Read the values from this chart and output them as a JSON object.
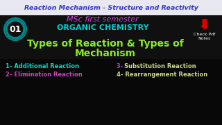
{
  "top_bar_color": "#e8e8f0",
  "top_bar_text": "Reaction Mechanism - Structure and Reactivity",
  "top_bar_text_color": "#3333cc",
  "background_color": "#080808",
  "mid_section_color": "#101010",
  "subtitle1": "MSc first semester",
  "subtitle1_color": "#cc44dd",
  "subtitle2": "ORGANIC CHEMISTRY",
  "subtitle2_color": "#00cccc",
  "main_title_line1": "Types of Reaction & Types of",
  "main_title_line2": "Mechanism",
  "main_title_color": "#88ee22",
  "badge_text": "01",
  "badge_circle_color": "#008888",
  "badge_text_color": "#ffffff",
  "check_arrow_color": "#dd0000",
  "check_text": "Check Pdf\nNotes",
  "check_text_color": "#ffffff",
  "item1": "1- Additional Reaction",
  "item1_color": "#00ddcc",
  "item2": "2- Elimination Reaction",
  "item2_color": "#cc44bb",
  "item3_num": "3- ",
  "item3_num_color": "#aa44cc",
  "item3_rest": "Substitution Reaction",
  "item3_rest_color": "#ccdd88",
  "item4": "4- Rearrangement Reaction",
  "item4_color": "#ccdd88"
}
